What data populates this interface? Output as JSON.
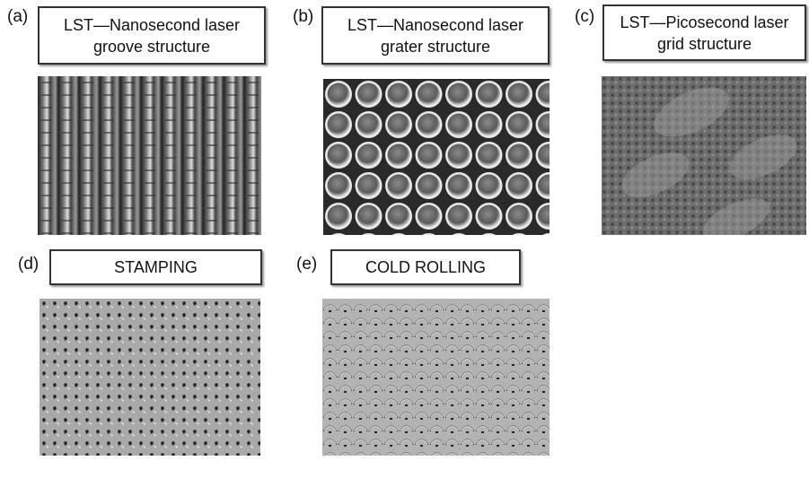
{
  "panels": [
    {
      "label": "(a)",
      "title_lines": [
        "LST—Nanosecond laser",
        "groove structure"
      ]
    },
    {
      "label": "(b)",
      "title_lines": [
        "LST—Nanosecond laser",
        "grater structure"
      ]
    },
    {
      "label": "(c)",
      "title_lines": [
        "LST—Picosecond laser",
        "grid structure"
      ]
    },
    {
      "label": "(d)",
      "title_lines": [
        "STAMPING"
      ]
    },
    {
      "label": "(e)",
      "title_lines": [
        "COLD ROLLING"
      ]
    }
  ]
}
